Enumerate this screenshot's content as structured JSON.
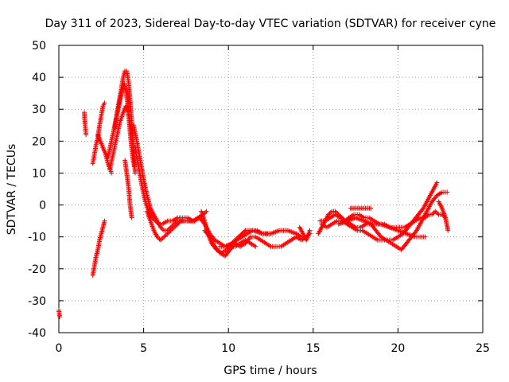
{
  "chart_data": {
    "type": "scatter",
    "title": "Day 311 of 2023, Sidereal Day-to-day VTEC variation (SDTVAR) for receiver cyne",
    "xlabel": "GPS time / hours",
    "ylabel": "SDTVAR / TECUs",
    "xlim": [
      0,
      25
    ],
    "ylim": [
      -40,
      50
    ],
    "xticks": [
      0,
      5,
      10,
      15,
      20,
      25
    ],
    "yticks": [
      -40,
      -30,
      -20,
      -10,
      0,
      10,
      20,
      30,
      40,
      50
    ],
    "grid": true,
    "marker": "+",
    "color": "#ff0000",
    "series": [
      {
        "name": "t0",
        "x": [
          0.0,
          0.05
        ],
        "y": [
          -33,
          -35
        ]
      },
      {
        "name": "t1",
        "x": [
          1.5,
          1.52,
          1.55,
          1.6
        ],
        "y": [
          29,
          27,
          25,
          22
        ]
      },
      {
        "name": "t2",
        "x": [
          2.0,
          2.1,
          2.2,
          2.3,
          2.4,
          2.5,
          2.6,
          2.7
        ],
        "y": [
          -22,
          -19,
          -16,
          -14,
          -11,
          -9,
          -7,
          -5
        ]
      },
      {
        "name": "t3",
        "x": [
          2.0,
          2.1,
          2.2,
          2.3,
          2.4,
          2.5,
          2.6,
          2.7
        ],
        "y": [
          13,
          16,
          19,
          21,
          25,
          28,
          31,
          32
        ]
      },
      {
        "name": "t4",
        "x": [
          2.3,
          2.45,
          2.6,
          2.75,
          2.85,
          2.95,
          3.05,
          3.1
        ],
        "y": [
          22,
          20,
          18,
          16,
          14,
          12,
          11,
          10
        ]
      },
      {
        "name": "t5",
        "x": [
          2.9,
          3.1,
          3.3,
          3.5,
          3.7,
          3.85,
          3.95,
          4.05,
          4.15,
          4.25,
          4.35,
          4.45,
          4.5
        ],
        "y": [
          15,
          20,
          25,
          30,
          35,
          38,
          36,
          32,
          26,
          20,
          15,
          12,
          14
        ]
      },
      {
        "name": "t6",
        "x": [
          3.3,
          3.4,
          3.5,
          3.6,
          3.7,
          3.8,
          3.9,
          4.0,
          4.1,
          4.2,
          4.3,
          4.4,
          4.5
        ],
        "y": [
          24,
          28,
          31,
          34,
          37,
          40,
          42,
          42,
          39,
          33,
          26,
          18,
          10
        ]
      },
      {
        "name": "t7",
        "x": [
          3.0,
          3.2,
          3.4,
          3.6,
          3.8,
          3.95,
          4.05,
          4.2,
          4.35,
          4.45
        ],
        "y": [
          11,
          16,
          21,
          26,
          29,
          31,
          30,
          26,
          20,
          16
        ]
      },
      {
        "name": "t8",
        "x": [
          3.9,
          4.0,
          4.1,
          4.15,
          4.2,
          4.25,
          4.3
        ],
        "y": [
          14,
          10,
          6,
          3,
          0,
          -2,
          -4
        ]
      },
      {
        "name": "t9",
        "x": [
          4.4,
          4.6,
          4.8,
          5.0,
          5.2,
          5.4,
          5.6,
          5.8,
          6.0,
          6.2,
          6.4,
          6.6,
          6.8,
          7.0,
          7.5,
          8.0
        ],
        "y": [
          25,
          20,
          14,
          8,
          3,
          -1,
          -3,
          -5,
          -7,
          -8,
          -8,
          -7,
          -6,
          -5,
          -5,
          -5
        ]
      },
      {
        "name": "t10",
        "x": [
          4.5,
          4.7,
          4.9,
          5.1,
          5.3,
          5.5,
          5.7,
          5.9,
          6.1,
          6.4,
          6.7,
          7.0,
          7.3,
          7.6,
          7.9,
          8.2,
          8.5,
          8.7
        ],
        "y": [
          18,
          12,
          6,
          1,
          -2,
          -4,
          -5,
          -6,
          -6,
          -5,
          -5,
          -4,
          -4,
          -4,
          -5,
          -4,
          -3,
          -2
        ]
      },
      {
        "name": "t11",
        "x": [
          5.2,
          5.4,
          5.6,
          5.8,
          6.0,
          6.2,
          6.4,
          6.6,
          6.8,
          7.0,
          7.2,
          7.4,
          7.6,
          7.8,
          8.0
        ],
        "y": [
          -2,
          -5,
          -8,
          -10,
          -11,
          -10,
          -9,
          -8,
          -7,
          -6,
          -5,
          -5,
          -5,
          -5,
          -5
        ]
      },
      {
        "name": "t12",
        "x": [
          8.0,
          8.3,
          8.6,
          8.9,
          9.2,
          9.5,
          9.8,
          10.2,
          10.6,
          11.0,
          11.5,
          12.0,
          12.5,
          13.0,
          13.5,
          14.0,
          14.3,
          14.6
        ],
        "y": [
          -5,
          -4,
          -6,
          -9,
          -11,
          -12,
          -13,
          -12,
          -10,
          -8,
          -8,
          -9,
          -9,
          -8,
          -8,
          -9,
          -10,
          -10
        ]
      },
      {
        "name": "t13",
        "x": [
          8.4,
          8.6,
          8.8,
          9.0,
          9.3,
          9.6,
          9.9,
          10.2,
          10.5,
          10.8,
          11.1,
          11.4,
          11.7,
          12.0,
          12.3
        ],
        "y": [
          -2,
          -5,
          -9,
          -12,
          -14,
          -15,
          -14,
          -12,
          -11,
          -10,
          -9,
          -8,
          -8,
          -9,
          -9
        ]
      },
      {
        "name": "t14",
        "x": [
          8.6,
          8.9,
          9.2,
          9.5,
          9.8,
          10.1,
          10.4,
          10.7,
          11.0,
          11.3,
          11.6,
          11.9,
          12.2,
          12.5,
          12.8,
          13.1,
          13.4,
          13.7,
          14.0,
          14.3,
          14.6,
          14.8
        ],
        "y": [
          -8,
          -10,
          -13,
          -15,
          -16,
          -14,
          -12,
          -13,
          -12,
          -10,
          -10,
          -11,
          -12,
          -13,
          -13,
          -13,
          -12,
          -11,
          -10,
          -11,
          -10,
          -9
        ]
      },
      {
        "name": "t15",
        "x": [
          9.5,
          9.8,
          10.1,
          10.4,
          10.7,
          11.0,
          11.3,
          11.6
        ],
        "y": [
          -13,
          -13,
          -13,
          -13,
          -12,
          -11,
          -12,
          -13
        ]
      },
      {
        "name": "t16",
        "x": [
          14.2,
          14.4,
          14.6,
          14.8
        ],
        "y": [
          -7,
          -9,
          -11,
          -8
        ]
      },
      {
        "name": "t17",
        "x": [
          15.3,
          15.5,
          15.7,
          15.9,
          16.1,
          16.3,
          16.5,
          16.7,
          16.9,
          17.1,
          17.4,
          17.7,
          18.0,
          18.3,
          18.6,
          18.9,
          19.2,
          19.5,
          19.8,
          20.1,
          20.4,
          20.7,
          21.0,
          21.3,
          21.6,
          21.8,
          22.0,
          22.2,
          22.4,
          22.6,
          22.8
        ],
        "y": [
          -9,
          -7,
          -5,
          -3,
          -2,
          -2,
          -3,
          -4,
          -5,
          -4,
          -3,
          -3,
          -4,
          -4,
          -5,
          -6,
          -6,
          -7,
          -7,
          -7,
          -7,
          -6,
          -5,
          -4,
          -4,
          -3,
          -3,
          -2,
          -3,
          -3,
          -4
        ]
      },
      {
        "name": "t18",
        "x": [
          15.4,
          15.7,
          16.0,
          16.3,
          16.6,
          16.9,
          17.2,
          17.5,
          17.8,
          18.1,
          18.4,
          18.7,
          19.0,
          19.3,
          19.6,
          19.9,
          20.2,
          20.5,
          20.8,
          21.1,
          21.4,
          21.7,
          22.0,
          22.3,
          22.6,
          22.9
        ],
        "y": [
          -5,
          -5,
          -4,
          -3,
          -4,
          -5,
          -6,
          -7,
          -7,
          -6,
          -6,
          -8,
          -10,
          -11,
          -12,
          -13,
          -14,
          -12,
          -10,
          -8,
          -5,
          -2,
          1,
          3,
          4,
          4
        ]
      },
      {
        "name": "t19",
        "x": [
          15.5,
          15.8,
          16.1,
          16.4,
          16.7,
          17.0,
          17.3,
          17.6,
          17.9,
          18.2,
          18.5,
          18.8,
          19.1,
          19.4,
          19.7,
          20.0,
          20.3,
          20.6,
          20.9,
          21.2,
          21.5,
          21.7,
          21.9,
          22.1,
          22.3
        ],
        "y": [
          -6,
          -7,
          -6,
          -5,
          -5,
          -6,
          -7,
          -8,
          -8,
          -9,
          -10,
          -11,
          -11,
          -11,
          -11,
          -10,
          -9,
          -7,
          -5,
          -3,
          -1,
          1,
          3,
          5,
          7
        ]
      },
      {
        "name": "t20",
        "x": [
          16.5,
          17.0,
          17.5,
          18.0,
          18.5,
          19.0,
          19.5,
          20.0,
          20.5,
          21.0,
          21.3,
          21.6
        ],
        "y": [
          -6,
          -5,
          -4,
          -5,
          -6,
          -6,
          -7,
          -8,
          -9,
          -10,
          -10,
          -10
        ]
      },
      {
        "name": "t21",
        "x": [
          17.2,
          17.6,
          18.0,
          18.4
        ],
        "y": [
          -1,
          -1,
          -1,
          -1
        ]
      },
      {
        "name": "t22",
        "x": [
          22.4,
          22.6,
          22.8,
          22.95
        ],
        "y": [
          1,
          -1,
          -4,
          -8
        ]
      }
    ]
  }
}
